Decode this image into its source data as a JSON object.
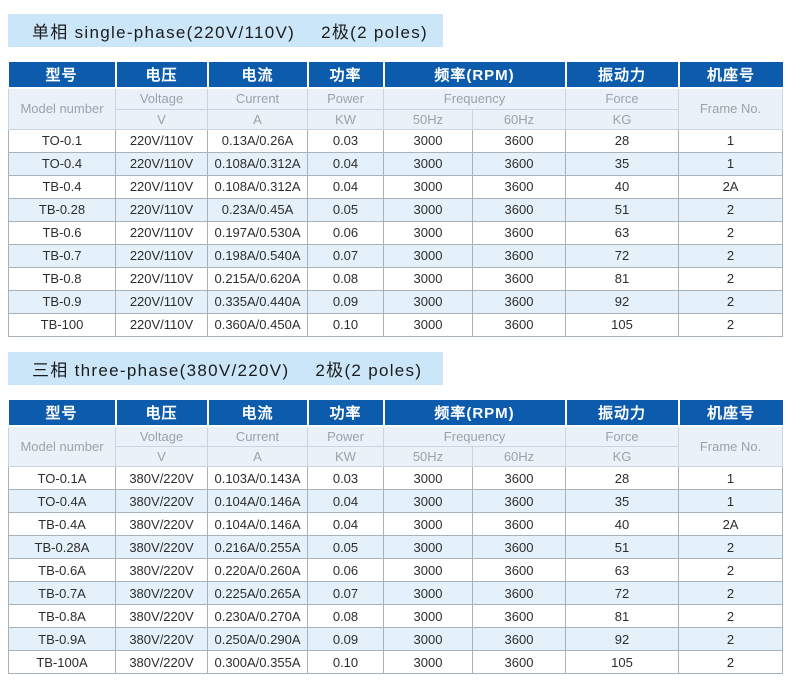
{
  "colors": {
    "header_blue": "#0d5bac",
    "banner_bg": "#cbe6f8",
    "subheader_bg": "#ebf1f8",
    "subheader_text": "#98a3ac",
    "row_alt_bg": "#e4f1fb",
    "border_gray": "#a8b2ba",
    "header_border": "#c9d5df"
  },
  "table_header": {
    "model": {
      "cn": "型号",
      "en": "Model number"
    },
    "voltage": {
      "cn": "电压",
      "en": "Voltage",
      "unit": "V"
    },
    "current": {
      "cn": "电流",
      "en": "Current",
      "unit": "A"
    },
    "power": {
      "cn": "功率",
      "en": "Power",
      "unit": "KW"
    },
    "frequency": {
      "cn": "频率(RPM)",
      "en": "Frequency",
      "sub1": "50Hz",
      "sub2": "60Hz"
    },
    "force": {
      "cn": "振动力",
      "en": "Force",
      "unit": "KG"
    },
    "frame": {
      "cn": "机座号",
      "en": "Frame No."
    }
  },
  "sections": [
    {
      "banner": {
        "title": "单相 single-phase(220V/110V)",
        "poles": "2极(2 poles)"
      },
      "rows": [
        [
          "TO-0.1",
          "220V/110V",
          "0.13A/0.26A",
          "0.03",
          "3000",
          "3600",
          "28",
          "1"
        ],
        [
          "TO-0.4",
          "220V/110V",
          "0.108A/0.312A",
          "0.04",
          "3000",
          "3600",
          "35",
          "1"
        ],
        [
          "TB-0.4",
          "220V/110V",
          "0.108A/0.312A",
          "0.04",
          "3000",
          "3600",
          "40",
          "2A"
        ],
        [
          "TB-0.28",
          "220V/110V",
          "0.23A/0.45A",
          "0.05",
          "3000",
          "3600",
          "51",
          "2"
        ],
        [
          "TB-0.6",
          "220V/110V",
          "0.197A/0.530A",
          "0.06",
          "3000",
          "3600",
          "63",
          "2"
        ],
        [
          "TB-0.7",
          "220V/110V",
          "0.198A/0.540A",
          "0.07",
          "3000",
          "3600",
          "72",
          "2"
        ],
        [
          "TB-0.8",
          "220V/110V",
          "0.215A/0.620A",
          "0.08",
          "3000",
          "3600",
          "81",
          "2"
        ],
        [
          "TB-0.9",
          "220V/110V",
          "0.335A/0.440A",
          "0.09",
          "3000",
          "3600",
          "92",
          "2"
        ],
        [
          "TB-100",
          "220V/110V",
          "0.360A/0.450A",
          "0.10",
          "3000",
          "3600",
          "105",
          "2"
        ]
      ]
    },
    {
      "banner": {
        "title": "三相 three-phase(380V/220V)",
        "poles": "2极(2 poles)"
      },
      "rows": [
        [
          "TO-0.1A",
          "380V/220V",
          "0.103A/0.143A",
          "0.03",
          "3000",
          "3600",
          "28",
          "1"
        ],
        [
          "TO-0.4A",
          "380V/220V",
          "0.104A/0.146A",
          "0.04",
          "3000",
          "3600",
          "35",
          "1"
        ],
        [
          "TB-0.4A",
          "380V/220V",
          "0.104A/0.146A",
          "0.04",
          "3000",
          "3600",
          "40",
          "2A"
        ],
        [
          "TB-0.28A",
          "380V/220V",
          "0.216A/0.255A",
          "0.05",
          "3000",
          "3600",
          "51",
          "2"
        ],
        [
          "TB-0.6A",
          "380V/220V",
          "0.220A/0.260A",
          "0.06",
          "3000",
          "3600",
          "63",
          "2"
        ],
        [
          "TB-0.7A",
          "380V/220V",
          "0.225A/0.265A",
          "0.07",
          "3000",
          "3600",
          "72",
          "2"
        ],
        [
          "TB-0.8A",
          "380V/220V",
          "0.230A/0.270A",
          "0.08",
          "3000",
          "3600",
          "81",
          "2"
        ],
        [
          "TB-0.9A",
          "380V/220V",
          "0.250A/0.290A",
          "0.09",
          "3000",
          "3600",
          "92",
          "2"
        ],
        [
          "TB-100A",
          "380V/220V",
          "0.300A/0.355A",
          "0.10",
          "3000",
          "3600",
          "105",
          "2"
        ]
      ]
    }
  ]
}
